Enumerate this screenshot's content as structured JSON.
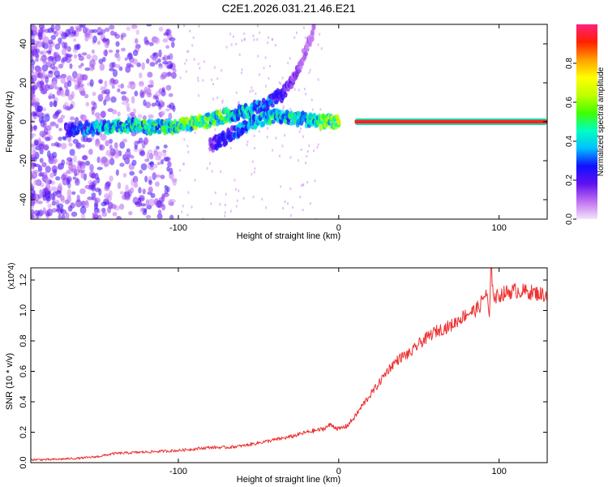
{
  "chart_data": [
    {
      "type": "heatmap",
      "title": "C2E1.2026.031.21.46.E21",
      "xlabel": "Height of straight line (km)",
      "ylabel": "Frequency (Hz)",
      "xlim": [
        -192,
        130
      ],
      "ylim": [
        -50,
        50
      ],
      "xticks": [
        -100,
        0,
        100
      ],
      "xtick_labels": [
        "-100",
        "0",
        "100"
      ],
      "yticks": [
        -40,
        -20,
        0,
        20,
        40
      ],
      "ytick_labels": [
        "-40",
        "-20",
        "0",
        "20",
        "40"
      ],
      "colorbar": {
        "label": "Normalized spectral amplitude",
        "range": [
          0,
          1
        ],
        "ticks": [
          0.0,
          0.2,
          0.4,
          0.6,
          0.8
        ],
        "tick_labels": [
          "0.0",
          "0.2",
          "0.4",
          "0.6",
          "0.8"
        ],
        "colormap": [
          "#f4e4fc",
          "#c070f0",
          "#6010f0",
          "#1010ff",
          "#00c0ff",
          "#00ffc0",
          "#40ff00",
          "#c0ff00",
          "#ffff00",
          "#ffa000",
          "#ff2000",
          "#ff2080"
        ]
      },
      "traces": [
        {
          "name": "main-echo",
          "points": [
            [
              -170,
              -4,
              0.25
            ],
            [
              -150,
              -3,
              0.45
            ],
            [
              -130,
              -2,
              0.5
            ],
            [
              -110,
              -3,
              0.55
            ],
            [
              -90,
              -1,
              0.6
            ],
            [
              -75,
              2,
              0.6
            ],
            [
              -65,
              4,
              0.5
            ],
            [
              -55,
              6,
              0.45
            ],
            [
              -45,
              9,
              0.35
            ],
            [
              -40,
              12,
              0.3
            ],
            [
              -35,
              14,
              0.25
            ],
            [
              -30,
              20,
              0.2
            ],
            [
              -25,
              28,
              0.15
            ],
            [
              -20,
              38,
              0.12
            ],
            [
              -15,
              48,
              0.1
            ]
          ]
        },
        {
          "name": "secondary-echo",
          "points": [
            [
              -80,
              -12,
              0.2
            ],
            [
              -70,
              -8,
              0.3
            ],
            [
              -60,
              -3,
              0.4
            ],
            [
              -50,
              1,
              0.45
            ],
            [
              -40,
              3,
              0.5
            ],
            [
              -30,
              2,
              0.5
            ],
            [
              -20,
              1,
              0.45
            ],
            [
              -10,
              0,
              0.6
            ],
            [
              0,
              0,
              0.7
            ]
          ]
        },
        {
          "name": "tone",
          "points": [
            [
              10,
              0,
              1.0
            ],
            [
              130,
              0,
              1.0
            ]
          ]
        }
      ]
    },
    {
      "type": "line",
      "xlabel": "Height of straight line (km)",
      "ylabel": "SNR (10 * v/v)",
      "scale_label": "(x10^4)",
      "xlim": [
        -192,
        130
      ],
      "ylim": [
        0,
        1.28
      ],
      "xticks": [
        -100,
        0,
        100
      ],
      "xtick_labels": [
        "-100",
        "0",
        "100"
      ],
      "yticks": [
        0.0,
        0.2,
        0.4,
        0.6,
        0.8,
        1.0,
        1.2
      ],
      "ytick_labels": [
        "0.0",
        "0.2",
        "0.4",
        "0.6",
        "0.8",
        "1.0",
        "1.2"
      ],
      "color": "#ee3030",
      "series": [
        {
          "name": "SNR",
          "x": [
            -192,
            -180,
            -160,
            -150,
            -140,
            -120,
            -100,
            -90,
            -80,
            -70,
            -60,
            -50,
            -40,
            -30,
            -20,
            -10,
            -5,
            0,
            5,
            10,
            15,
            20,
            25,
            30,
            35,
            40,
            45,
            50,
            55,
            60,
            65,
            70,
            75,
            80,
            85,
            88,
            90,
            92,
            94,
            95,
            97,
            100,
            105,
            110,
            120,
            130
          ],
          "values": [
            0.02,
            0.02,
            0.03,
            0.04,
            0.06,
            0.07,
            0.08,
            0.09,
            0.1,
            0.1,
            0.11,
            0.13,
            0.15,
            0.17,
            0.2,
            0.22,
            0.25,
            0.22,
            0.24,
            0.3,
            0.38,
            0.45,
            0.52,
            0.6,
            0.66,
            0.7,
            0.72,
            0.78,
            0.82,
            0.86,
            0.88,
            0.9,
            0.94,
            0.98,
            1.0,
            1.03,
            1.08,
            1.12,
            0.95,
            1.28,
            1.08,
            1.1,
            1.12,
            1.13,
            1.12,
            1.1
          ]
        }
      ]
    }
  ]
}
